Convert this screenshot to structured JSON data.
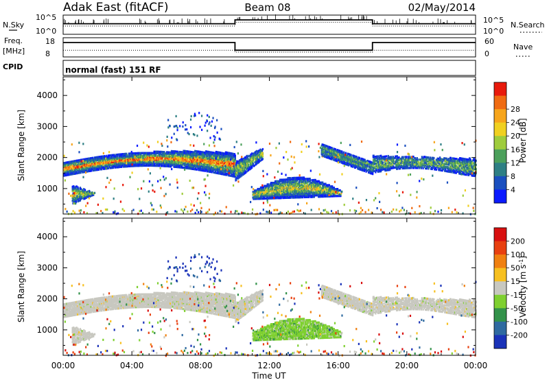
{
  "header": {
    "title": "Adak East (fitACF)",
    "beam": "Beam 08",
    "date": "02/May/2014"
  },
  "noise_panel": {
    "left_label": "N.Sky",
    "right_label": "N.Search",
    "left_ticks": [
      "10^5",
      "10^0"
    ],
    "right_ticks": [
      "10^5",
      "10^0"
    ]
  },
  "freq_panel": {
    "left_label_1": "Freq.",
    "left_label_2": "[MHz]",
    "right_label": "Nave",
    "left_ticks": [
      "18",
      "8"
    ],
    "right_ticks": [
      "60",
      "0"
    ],
    "cpid_label": "CPID",
    "mode_text": "normal (fast) 151 RF"
  },
  "chart_data": [
    {
      "type": "line",
      "panel": "noise",
      "xlim": [
        0,
        24
      ],
      "series": [
        {
          "name": "N.Sky",
          "x": [
            0,
            10,
            10,
            18,
            18,
            24
          ],
          "values": [
            0.55,
            0.55,
            0.75,
            0.75,
            0.55,
            0.55
          ]
        },
        {
          "name": "N.Search",
          "x": [
            0,
            10,
            10,
            18,
            18,
            24
          ],
          "values": [
            0.45,
            0.45,
            0.65,
            0.65,
            0.45,
            0.45
          ]
        }
      ]
    },
    {
      "type": "line",
      "panel": "frequency",
      "xlim": [
        0,
        24
      ],
      "series": [
        {
          "name": "Freq.",
          "x": [
            0,
            10,
            10,
            18,
            18,
            24
          ],
          "values": [
            15.5,
            15.5,
            11.5,
            11.5,
            15.5,
            15.5
          ]
        },
        {
          "name": "Nave",
          "x": [
            0,
            10,
            10,
            18,
            18,
            24
          ],
          "values": [
            21,
            21,
            15,
            15,
            21,
            21
          ]
        }
      ]
    },
    {
      "type": "heatmap",
      "panel": "power",
      "xlabel": "",
      "ylabel": "Slant Range [km]",
      "xlim": [
        0,
        24
      ],
      "ylim": [
        180,
        4600
      ],
      "yticks": [
        1000,
        2000,
        3000,
        4000
      ],
      "colorbar": {
        "label": "Power [dB]",
        "ticks": [
          "4",
          "8",
          "12",
          "16",
          "20",
          "24",
          "28"
        ],
        "range": [
          0,
          32
        ],
        "colors": [
          "#0a1aff",
          "#1a4fbf",
          "#2e7f84",
          "#4ca05b",
          "#9fcc3c",
          "#f0d020",
          "#f7a51b",
          "#f06b12",
          "#e81a0c"
        ]
      }
    },
    {
      "type": "heatmap",
      "panel": "velocity",
      "xlabel": "Time UT",
      "ylabel": "Slant Range [km]",
      "xlim": [
        0,
        24
      ],
      "ylim": [
        180,
        4600
      ],
      "yticks": [
        1000,
        2000,
        3000,
        4000
      ],
      "xticks": [
        "00:00",
        "04:00",
        "08:00",
        "12:00",
        "16:00",
        "20:00",
        "00:00"
      ],
      "colorbar": {
        "label": "Velocity [m s^-1]",
        "ticks": [
          "200",
          "100",
          "50",
          "15",
          "-15",
          "-50",
          "-100",
          "-200"
        ],
        "colors": [
          "#1a32b8",
          "#2f6aa0",
          "#33924a",
          "#7fd030",
          "#c8c8c0",
          "#f7c020",
          "#f08010",
          "#e84010",
          "#d81010"
        ]
      }
    }
  ]
}
